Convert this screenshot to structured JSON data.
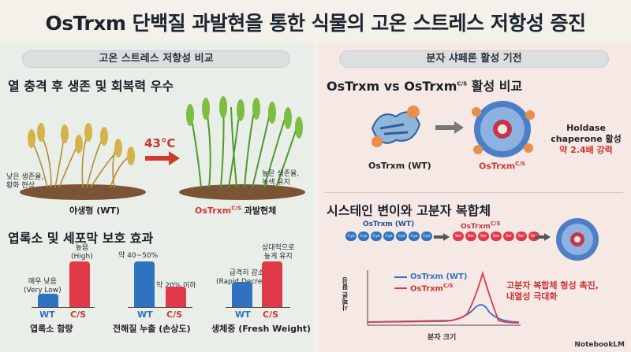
{
  "title": "OsTrxm 단백질 과발현을 통한 식물의 고온 스트레스 저항성 증진",
  "left": {
    "pill": "고온 스트레스 저항성 비교",
    "section1": {
      "header": "열 충격 후 생존 및 회복력 우수",
      "temp": "43°C",
      "wt_note": "낮은 생존율,\n황화 현상",
      "wt_label": "야생형 (WT)",
      "ox_note": "높은 생존율,\n녹색 유지",
      "ox_label_main": "OsTrxm",
      "ox_label_sup": "C/S",
      "ox_label_suffix": " 과발현체"
    },
    "section2": {
      "header": "엽록소 및 세포막 보호 효과",
      "charts": [
        {
          "caption": "엽록소 함량",
          "wt_note": "매우 낮음\n(Very Low)",
          "cs_note": "높음\n(High)",
          "wt_cat": "WT",
          "cs_cat": "C/S",
          "wt_level": 0.3,
          "cs_level": 1.0
        },
        {
          "caption": "전해질 누출 (손상도)",
          "wt_note": "약 40~50%",
          "cs_note": "약 20% 이하",
          "wt_cat": "WT",
          "cs_cat": "C/S",
          "wt_level": 1.0,
          "cs_level": 0.45
        },
        {
          "caption": "생체중 (Fresh Weight)",
          "wt_note": "급격히 감소\n(Rapid Decrease)",
          "cs_note": "상대적으로\n높게 유지",
          "wt_cat": "WT",
          "cs_cat": "C/S",
          "wt_level": 0.55,
          "cs_level": 1.0
        }
      ]
    }
  },
  "right": {
    "pill": "분자 샤페론 활성 기전",
    "section1": {
      "header_main": "OsTrxm vs OsTrxm",
      "header_sup": "C/S",
      "header_suffix": " 활성 비교",
      "wt_label": "OsTrxm (WT)",
      "cs_label_main": "OsTrxm",
      "cs_label_sup": "C/S",
      "activity_line1": "Holdase",
      "activity_line2": "chaperone 활성",
      "activity_line3": "약 2.4배 강력"
    },
    "section2": {
      "header": "시스테인 변이와 고분자 복합체",
      "wt_chain_label": "OsTrxm (WT)",
      "wt_bead_text": "Cys",
      "cs_chain_label_main": "OsTrxm",
      "cs_chain_label_sup": "C/S",
      "cs_bead_text": "Ser",
      "legend_wt": "OsTrxm (WT)",
      "legend_cs_main": "OsTrxm",
      "legend_cs_sup": "C/S",
      "ylabel": "사페론 활성",
      "xlabel": "분자 크기",
      "annotation": "고분자 복합체 형성 촉진,\n내열성 극대화"
    },
    "colors": {
      "wt": "#2f73c0",
      "cs": "#e0394a"
    }
  },
  "logo": "NotebookLM"
}
